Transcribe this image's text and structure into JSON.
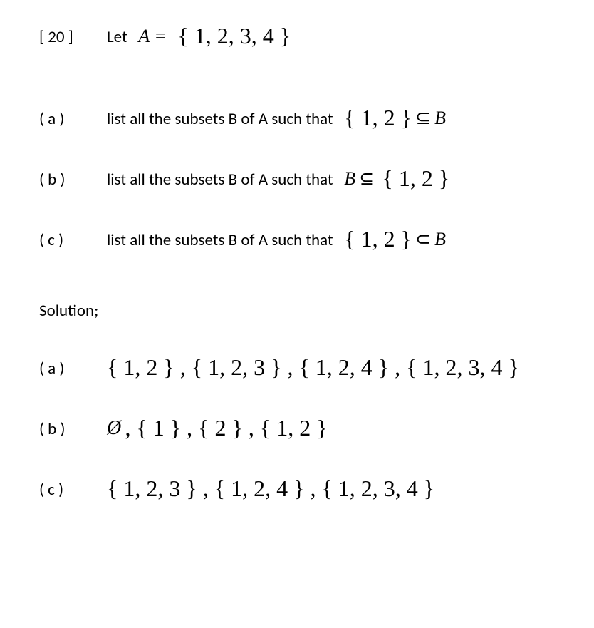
{
  "header": {
    "points_label": "[ 20 ]",
    "let_text": "Let",
    "A_eq": "A =",
    "A_set": "{ 1, 2, 3, 4 }"
  },
  "parts": {
    "a": {
      "label": "( a )",
      "text": "list all the subsets B of A such that",
      "math_left": "{ 1, 2 }",
      "math_rel": "⊆",
      "math_right": "B"
    },
    "b": {
      "label": "( b )",
      "text": "list all the subsets B of A such that",
      "math_left": "B",
      "math_rel": "⊆",
      "math_right": "{ 1, 2 }"
    },
    "c": {
      "label": "( c )",
      "text": "list all the subsets B of A such that",
      "math_left": "{ 1, 2 }",
      "math_rel": "⊂",
      "math_right": "B"
    }
  },
  "solution": {
    "title": "Solution;",
    "a": {
      "label": "( a )",
      "answer": "{ 1, 2 } , { 1, 2, 3 } , { 1, 2, 4 } , { 1, 2, 3, 4 }"
    },
    "b": {
      "label": "( b )",
      "empty": "Ø",
      "rest": ", { 1 } , { 2 } , { 1, 2 }"
    },
    "c": {
      "label": "( c )",
      "answer": "{ 1, 2, 3 } , { 1, 2, 4 } , { 1, 2, 3, 4 }"
    }
  },
  "style": {
    "text_color": "#000000",
    "background_color": "#ffffff",
    "body_fontsize": 23,
    "math_fontsize": 26,
    "brace_fontsize": 32
  }
}
